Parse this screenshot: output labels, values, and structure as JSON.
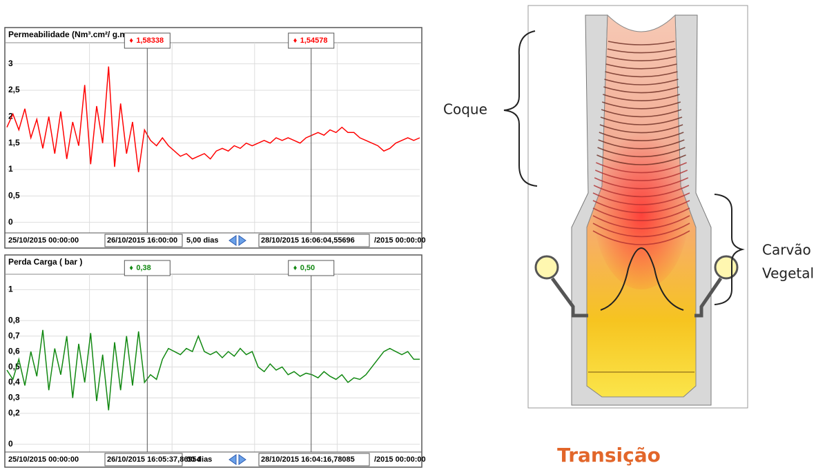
{
  "panels": [
    {
      "title": "Permeabilidade (Nm³.cm²/ g.m",
      "color": "#ff0000",
      "ylim": [
        -0.2,
        3.4
      ],
      "yticks": [
        0,
        {
          "value": 0.5,
          "label": "0,5"
        },
        1,
        {
          "value": 1.5,
          "label": "1,5"
        },
        2,
        {
          "value": 2.5,
          "label": "2,5"
        },
        3
      ],
      "cursors": [
        "1,58338",
        "1,54578"
      ],
      "footer": [
        "25/10/2015 00:00:00",
        "26/10/2015 16:00:00",
        "5,00 dias",
        "28/10/2015 16:06:04,55696",
        "/2015 00:00:00"
      ],
      "values": [
        1.8,
        2.05,
        1.75,
        2.15,
        1.6,
        1.95,
        1.4,
        2.0,
        1.3,
        2.1,
        1.2,
        1.9,
        1.45,
        2.6,
        1.1,
        2.2,
        1.5,
        2.95,
        1.05,
        2.25,
        1.3,
        1.9,
        0.95,
        1.75,
        1.55,
        1.45,
        1.6,
        1.45,
        1.35,
        1.25,
        1.3,
        1.2,
        1.25,
        1.3,
        1.2,
        1.35,
        1.4,
        1.35,
        1.45,
        1.4,
        1.5,
        1.45,
        1.5,
        1.55,
        1.5,
        1.6,
        1.55,
        1.6,
        1.55,
        1.5,
        1.6,
        1.65,
        1.7,
        1.65,
        1.75,
        1.7,
        1.8,
        1.7,
        1.7,
        1.6,
        1.55,
        1.5,
        1.45,
        1.35,
        1.4,
        1.5,
        1.55,
        1.6,
        1.55,
        1.6
      ]
    },
    {
      "title": "Perda Carga ( bar )",
      "color": "#118811",
      "ylim": [
        -0.05,
        1.1
      ],
      "yticks": [
        0,
        {
          "value": 0.2,
          "label": "0,2"
        },
        {
          "value": 0.3,
          "label": "0,3"
        },
        {
          "value": 0.4,
          "label": "0,4"
        },
        {
          "value": 0.5,
          "label": "0,5"
        },
        {
          "value": 0.6,
          "label": "0,6"
        },
        {
          "value": 0.7,
          "label": "0,7"
        },
        {
          "value": 0.8,
          "label": "0,8"
        },
        1
      ],
      "cursors": [
        "0,38",
        "0,50"
      ],
      "footer": [
        "25/10/2015 00:00:00",
        "26/10/2015 16:05:37,86954",
        "00 dias",
        "28/10/2015 16:04:16,78085",
        "/2015 00:00:00"
      ],
      "values": [
        0.48,
        0.42,
        0.55,
        0.38,
        0.6,
        0.44,
        0.74,
        0.35,
        0.62,
        0.45,
        0.7,
        0.3,
        0.65,
        0.4,
        0.72,
        0.28,
        0.58,
        0.22,
        0.66,
        0.35,
        0.7,
        0.38,
        0.73,
        0.4,
        0.45,
        0.42,
        0.55,
        0.62,
        0.6,
        0.58,
        0.62,
        0.6,
        0.7,
        0.6,
        0.58,
        0.6,
        0.56,
        0.6,
        0.57,
        0.62,
        0.58,
        0.6,
        0.5,
        0.47,
        0.52,
        0.48,
        0.5,
        0.45,
        0.47,
        0.44,
        0.46,
        0.45,
        0.43,
        0.47,
        0.44,
        0.42,
        0.45,
        0.4,
        0.43,
        0.42,
        0.45,
        0.5,
        0.55,
        0.6,
        0.62,
        0.6,
        0.58,
        0.6,
        0.55,
        0.55
      ]
    }
  ],
  "diagram": {
    "coque": "Coque",
    "carvao": [
      "Carvão",
      "Vegetal"
    ],
    "caption": "Transição"
  }
}
